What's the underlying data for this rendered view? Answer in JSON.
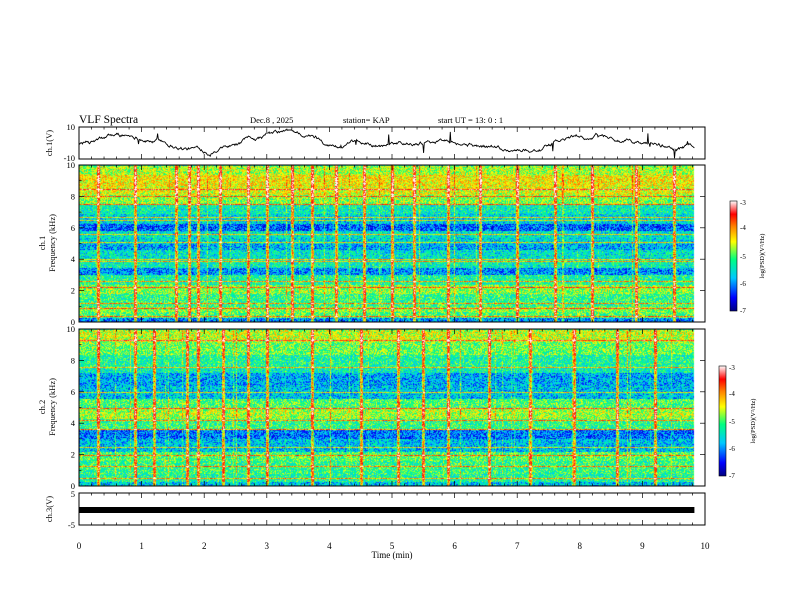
{
  "chart_data": {
    "type": "heatmap",
    "header": {
      "title": "VLF Spectra",
      "date": "Dec.8 , 2025",
      "station": "station= KAP",
      "start": "start UT =  13: 0 : 1"
    },
    "time_axis": {
      "label": "Time (min)",
      "range": [
        0,
        10
      ],
      "ticks": [
        "0",
        "1",
        "2",
        "3",
        "4",
        "5",
        "6",
        "7",
        "8",
        "9",
        "10"
      ]
    },
    "data_extent_min": 9.83,
    "panels": [
      {
        "id": "ch1",
        "type": "line",
        "ylabel": "ch.1(V)",
        "yrange": [
          -10,
          10
        ],
        "ticks": [
          "10",
          "-10"
        ]
      },
      {
        "id": "ch1_spec",
        "type": "heatmap",
        "ylabel_top": "ch.1",
        "ylabel": "Frequency (kHz)",
        "yrange": [
          0,
          10
        ],
        "ticks": [
          "0",
          "2",
          "4",
          "6",
          "8",
          "10"
        ]
      },
      {
        "id": "ch2_spec",
        "type": "heatmap",
        "ylabel_top": "ch.2",
        "ylabel": "Frequency (kHz)",
        "yrange": [
          0,
          10
        ],
        "ticks": [
          "0",
          "2",
          "4",
          "6",
          "8",
          "10"
        ]
      },
      {
        "id": "ch3",
        "type": "line",
        "ylabel": "ch.3(V)",
        "yrange": [
          -5,
          5
        ],
        "ticks": [
          "5",
          "-5"
        ]
      }
    ],
    "colorbar": {
      "label": "log(PSD)(V²/Hz)",
      "range": [
        -7,
        -3
      ],
      "ticks": [
        "-3",
        "-4",
        "-5",
        "-6",
        "-7"
      ]
    },
    "colormap": [
      "#000080",
      "#0000ff",
      "#00c8ff",
      "#00ff80",
      "#ffff00",
      "#ff8000",
      "#ff0000",
      "#ffffff"
    ],
    "spectra": {
      "ch1": {
        "base_bands": [
          [
            0,
            0.3,
            -6.0
          ],
          [
            0.3,
            0.7,
            -5.2
          ],
          [
            0.7,
            1.0,
            -5.0
          ],
          [
            1.0,
            1.8,
            -5.3
          ],
          [
            1.8,
            2.4,
            -5.0
          ],
          [
            2.4,
            3.0,
            -5.4
          ],
          [
            3.0,
            3.5,
            -6.0
          ],
          [
            3.5,
            4.0,
            -5.5
          ],
          [
            4.0,
            4.6,
            -5.6
          ],
          [
            4.6,
            5.0,
            -5.9
          ],
          [
            5.0,
            5.4,
            -5.7
          ],
          [
            5.4,
            5.8,
            -5.6
          ],
          [
            5.8,
            6.3,
            -6.2
          ],
          [
            6.3,
            6.9,
            -5.7
          ],
          [
            6.9,
            7.5,
            -5.5
          ],
          [
            7.5,
            8.1,
            -5.0
          ],
          [
            8.1,
            8.7,
            -4.7
          ],
          [
            8.7,
            9.4,
            -4.6
          ],
          [
            9.4,
            10.0,
            -4.9
          ]
        ],
        "lines_khz": [
          0.4,
          0.9,
          1.2,
          2.2,
          2.6,
          3.9,
          4.0,
          5.1,
          5.6,
          6.5,
          6.7,
          7.5,
          8.0,
          8.5
        ],
        "sferic_times_min": [
          0.3,
          0.9,
          1.55,
          1.75,
          1.9,
          2.25,
          2.7,
          3.0,
          3.4,
          3.72,
          4.1,
          4.55,
          5.0,
          5.35,
          5.9,
          6.4,
          7.0,
          7.6,
          8.2,
          8.9,
          9.5
        ]
      },
      "ch2": {
        "base_bands": [
          [
            0,
            0.3,
            -5.8
          ],
          [
            0.3,
            0.8,
            -5.4
          ],
          [
            0.8,
            1.6,
            -5.3
          ],
          [
            1.6,
            2.2,
            -5.2
          ],
          [
            2.2,
            3.0,
            -5.8
          ],
          [
            3.0,
            3.6,
            -6.1
          ],
          [
            3.6,
            4.3,
            -5.3
          ],
          [
            4.3,
            5.0,
            -4.9
          ],
          [
            5.0,
            5.6,
            -5.2
          ],
          [
            5.6,
            6.4,
            -5.8
          ],
          [
            6.4,
            7.2,
            -5.9
          ],
          [
            7.2,
            7.6,
            -5.5
          ],
          [
            7.6,
            8.4,
            -5.4
          ],
          [
            8.4,
            9.2,
            -5.1
          ],
          [
            9.2,
            10.0,
            -4.8
          ]
        ],
        "lines_khz": [
          0.5,
          1.3,
          2.0,
          2.5,
          3.6,
          4.2,
          5.0,
          6.0,
          7.6,
          9.3
        ],
        "sferic_times_min": [
          0.3,
          0.9,
          1.2,
          1.72,
          1.9,
          2.3,
          2.7,
          3.0,
          3.72,
          4.5,
          5.1,
          5.5,
          5.9,
          6.55,
          7.2,
          7.9,
          8.6,
          9.2
        ]
      }
    }
  }
}
